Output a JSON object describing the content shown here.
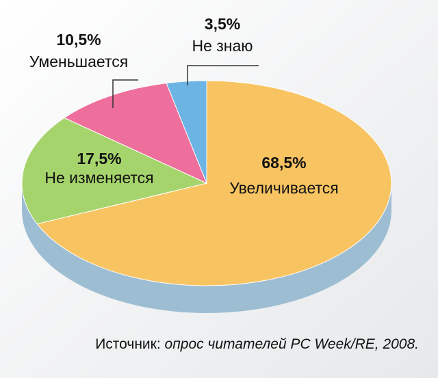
{
  "chart_data": {
    "type": "pie",
    "categories": [
      "Увеличивается",
      "Не изменяется",
      "Уменьшается",
      "Не знаю"
    ],
    "values": [
      68.5,
      17.5,
      10.5,
      3.5
    ],
    "value_labels": [
      "68,5%",
      "17,5%",
      "10,5%",
      "3,5%"
    ],
    "colors": [
      "#f8c462",
      "#a6d46c",
      "#ee6f9b",
      "#6cb4e4"
    ],
    "source_label": "Источник:",
    "source": "опрос читателей PC Week/RE, 2008."
  }
}
